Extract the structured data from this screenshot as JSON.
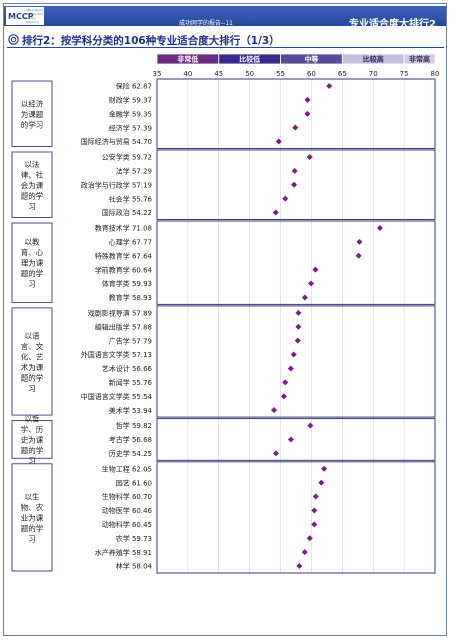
{
  "header": {
    "logo_text": "MCCP",
    "logo_subtext": "2012 Major Choice and Career Planning",
    "report_title": "成功网学的报告--11",
    "section_name": "专业适合度大排行2"
  },
  "chart_heading": {
    "icon": "circle-target-icon",
    "title": "排行2：按学科分类的106种专业适合度大排行（1/3）"
  },
  "chart_data": {
    "type": "scatter",
    "xlim": [
      35,
      80
    ],
    "x_ticks": [
      35,
      40,
      45,
      50,
      55,
      60,
      65,
      70,
      75,
      80
    ],
    "legend_bands": [
      {
        "label": "非常低",
        "range": [
          35,
          45
        ],
        "color": "#6a2a7e"
      },
      {
        "label": "比较低",
        "range": [
          45,
          55
        ],
        "color": "#3a2a8a"
      },
      {
        "label": "中等",
        "range": [
          55,
          65
        ],
        "color": "#5a4a9a"
      },
      {
        "label": "比较高",
        "range": [
          65,
          75
        ],
        "color": "#c8bcdc"
      },
      {
        "label": "非常高",
        "range": [
          75,
          80
        ],
        "color": "#d6c8e6"
      }
    ],
    "marker_color": "#7a1f86",
    "groups": [
      {
        "label": "以经济为课题的学习",
        "lines": [
          "以经济",
          "为课题",
          "的学习"
        ],
        "items": [
          {
            "name": "保险",
            "value": 62.87
          },
          {
            "name": "财政学",
            "value": 59.37
          },
          {
            "name": "金融学",
            "value": 59.35
          },
          {
            "name": "经济学",
            "value": 57.39
          },
          {
            "name": "国际经济与贸易",
            "value": 54.7
          }
        ]
      },
      {
        "label": "以法律、社会为课题的学习",
        "lines": [
          "以法",
          "律、社",
          "会为课",
          "题的学",
          "习"
        ],
        "items": [
          {
            "name": "公安学类",
            "value": 59.72
          },
          {
            "name": "法学",
            "value": 57.29
          },
          {
            "name": "政治学与行政学",
            "value": 57.19
          },
          {
            "name": "社会学",
            "value": 55.76
          },
          {
            "name": "国际政治",
            "value": 54.22
          }
        ]
      },
      {
        "label": "以教育、心理为课题的学习",
        "lines": [
          "以教",
          "育、心",
          "理为课",
          "题的学",
          "习"
        ],
        "items": [
          {
            "name": "教育技术学",
            "value": 71.08
          },
          {
            "name": "心理学",
            "value": 67.77
          },
          {
            "name": "特殊教育学",
            "value": 67.64
          },
          {
            "name": "学前教育学",
            "value": 60.64
          },
          {
            "name": "体育学类",
            "value": 59.93
          },
          {
            "name": "教育学",
            "value": 58.93
          }
        ]
      },
      {
        "label": "以语言、文化、艺术为课题的学习",
        "lines": [
          "以语",
          "言、文",
          "化、艺",
          "术为课",
          "题的学",
          "习"
        ],
        "items": [
          {
            "name": "戏剧影视导演",
            "value": 57.89
          },
          {
            "name": "编辑出版学",
            "value": 57.88
          },
          {
            "name": "广告学",
            "value": 57.79
          },
          {
            "name": "外国语言文学类",
            "value": 57.13
          },
          {
            "name": "艺术设计",
            "value": 56.66
          },
          {
            "name": "新闻学",
            "value": 55.76
          },
          {
            "name": "中国语言文学类",
            "value": 55.54
          },
          {
            "name": "美术学",
            "value": 53.94
          }
        ]
      },
      {
        "label": "以哲学、历史为课题的学习",
        "lines": [
          "以哲",
          "学、历",
          "史为课",
          "题的学",
          "习"
        ],
        "items": [
          {
            "name": "哲学",
            "value": 59.82
          },
          {
            "name": "考古学",
            "value": 56.68
          },
          {
            "name": "历史学",
            "value": 54.25
          }
        ]
      },
      {
        "label": "以生物、农业为课题的学习",
        "lines": [
          "以生",
          "物、农",
          "业为课",
          "题的学",
          "习"
        ],
        "items": [
          {
            "name": "生物工程",
            "value": 62.05
          },
          {
            "name": "园艺",
            "value": 61.6
          },
          {
            "name": "生物科学",
            "value": 60.7
          },
          {
            "name": "动物医学",
            "value": 60.46
          },
          {
            "name": "动物科学",
            "value": 60.45
          },
          {
            "name": "农学",
            "value": 59.73
          },
          {
            "name": "水产养殖学",
            "value": 58.91
          },
          {
            "name": "林学",
            "value": 58.04
          }
        ]
      }
    ]
  }
}
